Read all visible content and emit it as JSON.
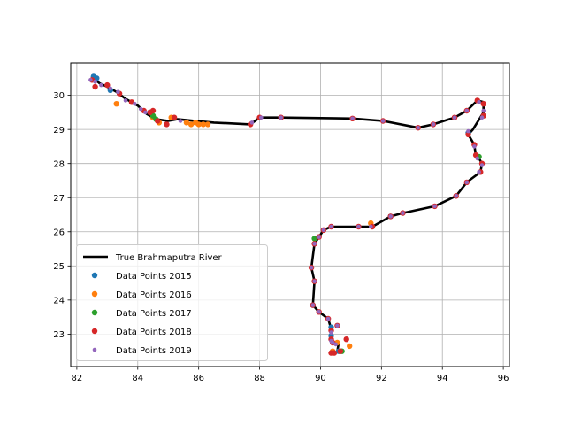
{
  "chart_data": {
    "type": "scatter",
    "title": "",
    "xlabel": "",
    "ylabel": "",
    "xlim": [
      81.8,
      96.2
    ],
    "ylim": [
      22.05,
      30.95
    ],
    "xticks": [
      "82",
      "84",
      "86",
      "88",
      "90",
      "92",
      "94",
      "96"
    ],
    "yticks": [
      "23",
      "24",
      "25",
      "26",
      "27",
      "28",
      "29",
      "30"
    ],
    "grid": true,
    "legend_position": "lower-left",
    "river": {
      "name": "True Brahmaputra River",
      "color": "#000000",
      "points": [
        [
          82.55,
          30.5
        ],
        [
          82.75,
          30.35
        ],
        [
          83.0,
          30.25
        ],
        [
          83.3,
          30.1
        ],
        [
          83.6,
          29.9
        ],
        [
          84.0,
          29.7
        ],
        [
          84.3,
          29.45
        ],
        [
          84.6,
          29.3
        ],
        [
          85.0,
          29.25
        ],
        [
          85.3,
          29.3
        ],
        [
          85.9,
          29.25
        ],
        [
          86.5,
          29.2
        ],
        [
          87.7,
          29.15
        ],
        [
          88.0,
          29.35
        ],
        [
          88.7,
          29.35
        ],
        [
          91.05,
          29.32
        ],
        [
          92.05,
          29.25
        ],
        [
          93.2,
          29.05
        ],
        [
          93.7,
          29.15
        ],
        [
          94.4,
          29.35
        ],
        [
          94.8,
          29.55
        ],
        [
          95.15,
          29.85
        ],
        [
          95.35,
          29.8
        ],
        [
          95.35,
          29.5
        ],
        [
          95.0,
          29.0
        ],
        [
          94.85,
          28.85
        ],
        [
          95.05,
          28.55
        ],
        [
          95.1,
          28.2
        ],
        [
          95.2,
          28.15
        ],
        [
          95.3,
          28.0
        ],
        [
          95.25,
          27.75
        ],
        [
          94.95,
          27.55
        ],
        [
          94.8,
          27.45
        ],
        [
          94.45,
          27.05
        ],
        [
          93.75,
          26.75
        ],
        [
          92.7,
          26.55
        ],
        [
          92.3,
          26.45
        ],
        [
          91.7,
          26.15
        ],
        [
          91.25,
          26.15
        ],
        [
          90.35,
          26.15
        ],
        [
          90.1,
          26.05
        ],
        [
          89.95,
          25.85
        ],
        [
          89.8,
          25.65
        ],
        [
          89.7,
          24.95
        ],
        [
          89.8,
          24.55
        ],
        [
          89.75,
          23.85
        ],
        [
          89.95,
          23.65
        ],
        [
          90.25,
          23.45
        ],
        [
          90.35,
          23.15
        ],
        [
          90.35,
          22.9
        ],
        [
          90.4,
          22.75
        ],
        [
          90.6,
          22.75
        ],
        [
          90.55,
          22.5
        ]
      ]
    },
    "series": [
      {
        "name": "Data Points 2015",
        "color": "#1f77b4",
        "points": [
          [
            82.55,
            30.55
          ],
          [
            82.65,
            30.5
          ],
          [
            83.1,
            30.15
          ],
          [
            84.4,
            29.5
          ],
          [
            92.3,
            26.45
          ],
          [
            90.35,
            23.2
          ],
          [
            90.35,
            22.95
          ],
          [
            90.6,
            22.5
          ],
          [
            89.75,
            23.85
          ],
          [
            94.85,
            28.9
          ]
        ]
      },
      {
        "name": "Data Points 2016",
        "color": "#ff7f0e",
        "points": [
          [
            83.3,
            29.75
          ],
          [
            84.5,
            29.35
          ],
          [
            84.7,
            29.2
          ],
          [
            85.1,
            29.35
          ],
          [
            85.6,
            29.2
          ],
          [
            85.75,
            29.15
          ],
          [
            86.0,
            29.15
          ],
          [
            86.15,
            29.15
          ],
          [
            86.3,
            29.15
          ],
          [
            85.9,
            29.2
          ],
          [
            91.65,
            26.25
          ],
          [
            90.95,
            22.65
          ],
          [
            90.55,
            22.75
          ],
          [
            90.4,
            22.5
          ]
        ]
      },
      {
        "name": "Data Points 2017",
        "color": "#2ca02c",
        "points": [
          [
            84.5,
            29.4
          ],
          [
            84.6,
            29.3
          ],
          [
            90.7,
            22.5
          ],
          [
            95.2,
            28.2
          ],
          [
            89.8,
            25.8
          ]
        ]
      },
      {
        "name": "Data Points 2018",
        "color": "#d62728",
        "points": [
          [
            82.6,
            30.25
          ],
          [
            82.5,
            30.45
          ],
          [
            83.0,
            30.3
          ],
          [
            83.4,
            30.05
          ],
          [
            83.8,
            29.8
          ],
          [
            84.2,
            29.55
          ],
          [
            84.4,
            29.5
          ],
          [
            84.5,
            29.55
          ],
          [
            84.65,
            29.25
          ],
          [
            84.95,
            29.15
          ],
          [
            85.2,
            29.35
          ],
          [
            87.7,
            29.15
          ],
          [
            88.0,
            29.35
          ],
          [
            88.7,
            29.35
          ],
          [
            91.05,
            29.32
          ],
          [
            92.05,
            29.25
          ],
          [
            93.2,
            29.05
          ],
          [
            93.7,
            29.15
          ],
          [
            94.4,
            29.35
          ],
          [
            94.8,
            29.55
          ],
          [
            95.15,
            29.85
          ],
          [
            95.35,
            29.75
          ],
          [
            95.35,
            29.4
          ],
          [
            94.85,
            28.85
          ],
          [
            95.05,
            28.55
          ],
          [
            95.1,
            28.25
          ],
          [
            95.3,
            28.0
          ],
          [
            95.25,
            27.75
          ],
          [
            94.8,
            27.45
          ],
          [
            94.45,
            27.05
          ],
          [
            93.75,
            26.75
          ],
          [
            92.7,
            26.55
          ],
          [
            92.3,
            26.45
          ],
          [
            91.7,
            26.15
          ],
          [
            91.25,
            26.15
          ],
          [
            90.35,
            26.15
          ],
          [
            90.1,
            26.05
          ],
          [
            89.95,
            25.85
          ],
          [
            89.8,
            25.65
          ],
          [
            89.7,
            24.95
          ],
          [
            89.8,
            24.55
          ],
          [
            89.75,
            23.85
          ],
          [
            89.95,
            23.65
          ],
          [
            90.25,
            23.45
          ],
          [
            90.35,
            23.1
          ],
          [
            90.35,
            22.85
          ],
          [
            90.55,
            23.25
          ],
          [
            90.85,
            22.85
          ],
          [
            90.35,
            22.45
          ],
          [
            90.45,
            22.45
          ],
          [
            90.65,
            22.5
          ],
          [
            90.4,
            22.75
          ]
        ]
      },
      {
        "name": "Data Points 2019",
        "color": "#9467bd",
        "points": [
          [
            82.45,
            30.45
          ],
          [
            82.6,
            30.4
          ],
          [
            82.8,
            30.3
          ],
          [
            83.1,
            30.2
          ],
          [
            83.35,
            30.1
          ],
          [
            83.6,
            29.85
          ],
          [
            83.9,
            29.75
          ],
          [
            84.1,
            29.6
          ],
          [
            84.25,
            29.5
          ],
          [
            85.4,
            29.25
          ],
          [
            87.75,
            29.2
          ],
          [
            88.05,
            29.35
          ],
          [
            88.7,
            29.35
          ],
          [
            91.05,
            29.32
          ],
          [
            92.05,
            29.25
          ],
          [
            93.2,
            29.05
          ],
          [
            93.7,
            29.15
          ],
          [
            94.4,
            29.35
          ],
          [
            94.8,
            29.55
          ],
          [
            95.2,
            29.8
          ],
          [
            95.35,
            29.55
          ],
          [
            95.3,
            29.35
          ],
          [
            94.85,
            28.95
          ],
          [
            95.05,
            28.5
          ],
          [
            95.15,
            28.15
          ],
          [
            95.3,
            27.95
          ],
          [
            95.2,
            27.75
          ],
          [
            94.8,
            27.45
          ],
          [
            94.45,
            27.05
          ],
          [
            93.75,
            26.75
          ],
          [
            92.7,
            26.55
          ],
          [
            92.3,
            26.45
          ],
          [
            91.65,
            26.15
          ],
          [
            91.25,
            26.15
          ],
          [
            90.35,
            26.15
          ],
          [
            90.1,
            26.05
          ],
          [
            89.95,
            25.85
          ],
          [
            89.8,
            25.65
          ],
          [
            89.7,
            24.95
          ],
          [
            89.8,
            24.55
          ],
          [
            89.75,
            23.85
          ],
          [
            89.95,
            23.65
          ],
          [
            90.25,
            23.45
          ],
          [
            90.35,
            23.05
          ],
          [
            90.35,
            22.8
          ],
          [
            90.55,
            23.25
          ],
          [
            90.4,
            22.75
          ],
          [
            90.5,
            22.7
          ]
        ]
      }
    ]
  }
}
